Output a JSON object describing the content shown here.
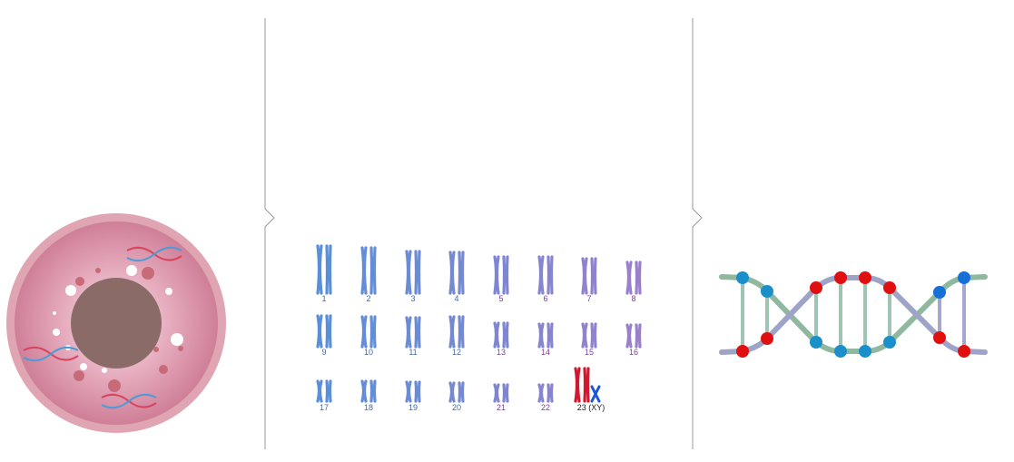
{
  "karyotype": {
    "labels": [
      "1",
      "2",
      "3",
      "4",
      "5",
      "6",
      "7",
      "8",
      "9",
      "10",
      "11",
      "12",
      "13",
      "14",
      "15",
      "16",
      "17",
      "18",
      "19",
      "20",
      "21",
      "22",
      "23 (XY)"
    ]
  }
}
